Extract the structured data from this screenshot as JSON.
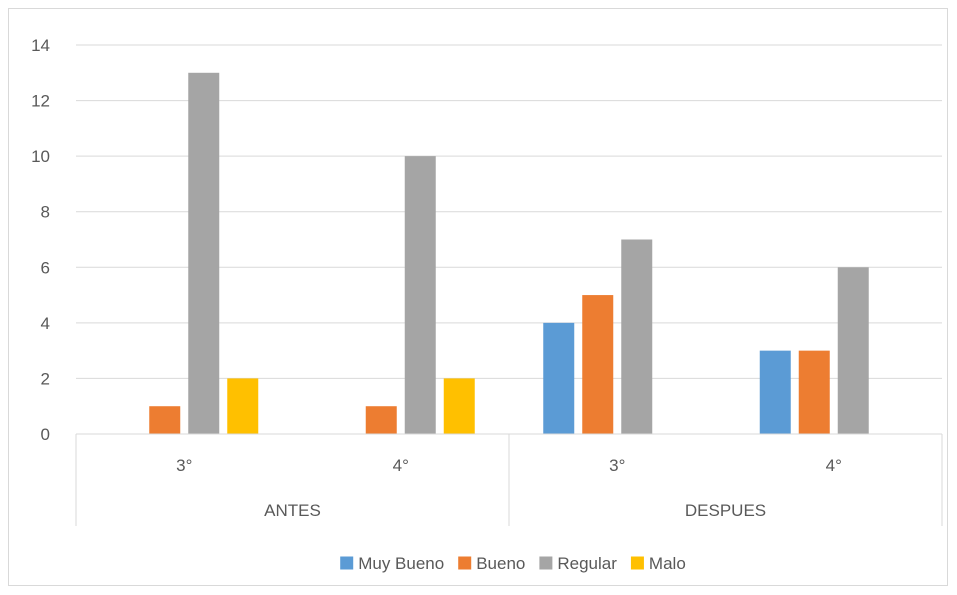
{
  "chart_data": {
    "type": "bar",
    "title": "",
    "xlabel": "",
    "ylabel": "",
    "ylim": [
      0,
      14
    ],
    "yticks": [
      "0",
      "2",
      "4",
      "6",
      "8",
      "10",
      "12",
      "14"
    ],
    "grid": true,
    "legend_position": "bottom",
    "groups": [
      {
        "label": "ANTES",
        "categories": [
          "3°",
          "4°"
        ]
      },
      {
        "label": "DESPUES",
        "categories": [
          "3°",
          "4°"
        ]
      }
    ],
    "series": [
      {
        "name": "Muy Bueno",
        "color": "#5b9bd5",
        "values": [
          0,
          0,
          4,
          3
        ]
      },
      {
        "name": "Bueno",
        "color": "#ed7d31",
        "values": [
          1,
          1,
          5,
          3
        ]
      },
      {
        "name": "Regular",
        "color": "#a5a5a5",
        "values": [
          13,
          10,
          7,
          6
        ]
      },
      {
        "name": "Malo",
        "color": "#ffc000",
        "values": [
          2,
          2,
          0,
          0
        ]
      }
    ]
  }
}
